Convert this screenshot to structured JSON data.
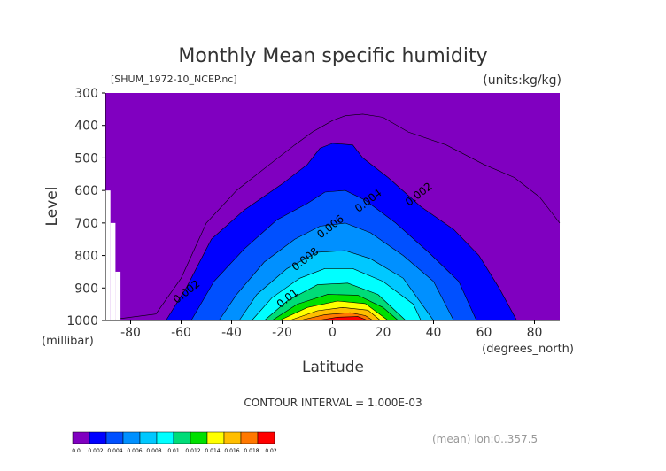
{
  "chart_data": {
    "type": "contour",
    "title": "Monthly Mean specific humidity",
    "source_label": "[SHUM_1972-10_NCEP.nc]",
    "units_label": "(units:kg/kg)",
    "xlabel": "Latitude",
    "ylabel": "Level",
    "x_unit_label": "(degrees_north)",
    "y_unit_label": "(millibar)",
    "xlim": [
      -90,
      90
    ],
    "ylim": [
      1000,
      300
    ],
    "x_ticks": [
      -80,
      -60,
      -40,
      -20,
      0,
      20,
      40,
      60,
      80
    ],
    "y_ticks": [
      300,
      400,
      500,
      600,
      700,
      800,
      900,
      1000
    ],
    "contour_interval_label": "CONTOUR INTERVAL = 1.000E-03",
    "footer_label": "(mean) lon:0..357.5",
    "contour_labels": [
      {
        "text": "0.002",
        "lat": -57,
        "level": 920
      },
      {
        "text": "0.002",
        "lat": 35,
        "level": 620
      },
      {
        "text": "0.004",
        "lat": 15,
        "level": 640
      },
      {
        "text": "0.006",
        "lat": 0,
        "level": 720
      },
      {
        "text": "0.008",
        "lat": -10,
        "level": 820
      },
      {
        "text": "0.01",
        "lat": -17,
        "level": 940
      }
    ],
    "fill_levels": [
      {
        "threshold": 0.002,
        "color": "#0000ff",
        "profile": [
          [
            -66,
            1000
          ],
          [
            -58,
            900
          ],
          [
            -48,
            750
          ],
          [
            -35,
            660
          ],
          [
            -20,
            580
          ],
          [
            -10,
            520
          ],
          [
            -5,
            470
          ],
          [
            0,
            455
          ],
          [
            8,
            460
          ],
          [
            12,
            500
          ],
          [
            22,
            560
          ],
          [
            35,
            650
          ],
          [
            48,
            720
          ],
          [
            58,
            800
          ],
          [
            66,
            900
          ],
          [
            73,
            1000
          ]
        ]
      },
      {
        "threshold": 0.003,
        "color": "#0050ff",
        "profile": [
          [
            -56,
            1000
          ],
          [
            -47,
            880
          ],
          [
            -35,
            780
          ],
          [
            -22,
            690
          ],
          [
            -10,
            640
          ],
          [
            -3,
            605
          ],
          [
            5,
            600
          ],
          [
            13,
            630
          ],
          [
            25,
            700
          ],
          [
            38,
            790
          ],
          [
            50,
            880
          ],
          [
            57,
            1000
          ]
        ]
      },
      {
        "threshold": 0.004,
        "color": "#0090ff",
        "profile": [
          [
            -45,
            1000
          ],
          [
            -38,
            920
          ],
          [
            -27,
            820
          ],
          [
            -15,
            750
          ],
          [
            -5,
            710
          ],
          [
            5,
            700
          ],
          [
            15,
            730
          ],
          [
            28,
            800
          ],
          [
            40,
            880
          ],
          [
            48,
            1000
          ]
        ]
      },
      {
        "threshold": 0.005,
        "color": "#00c8ff",
        "profile": [
          [
            -37,
            1000
          ],
          [
            -30,
            920
          ],
          [
            -18,
            840
          ],
          [
            -6,
            790
          ],
          [
            5,
            785
          ],
          [
            15,
            810
          ],
          [
            28,
            870
          ],
          [
            40,
            1000
          ]
        ]
      },
      {
        "threshold": 0.006,
        "color": "#00ffff",
        "profile": [
          [
            -32,
            1000
          ],
          [
            -24,
            930
          ],
          [
            -13,
            870
          ],
          [
            -3,
            840
          ],
          [
            8,
            840
          ],
          [
            20,
            880
          ],
          [
            32,
            950
          ],
          [
            35,
            1000
          ]
        ]
      },
      {
        "threshold": 0.008,
        "color": "#00dc78",
        "profile": [
          [
            -27,
            1000
          ],
          [
            -18,
            940
          ],
          [
            -6,
            890
          ],
          [
            6,
            885
          ],
          [
            18,
            920
          ],
          [
            29,
            1000
          ]
        ]
      },
      {
        "threshold": 0.01,
        "color": "#00e000",
        "profile": [
          [
            -24,
            1000
          ],
          [
            -14,
            950
          ],
          [
            -2,
            920
          ],
          [
            10,
            922
          ],
          [
            20,
            960
          ],
          [
            26,
            1000
          ]
        ]
      },
      {
        "threshold": 0.012,
        "color": "#ffff00",
        "profile": [
          [
            -21,
            1000
          ],
          [
            -10,
            960
          ],
          [
            2,
            940
          ],
          [
            13,
            948
          ],
          [
            22,
            1000
          ]
        ]
      },
      {
        "threshold": 0.014,
        "color": "#ffbe00",
        "profile": [
          [
            -17,
            1000
          ],
          [
            -6,
            970
          ],
          [
            4,
            960
          ],
          [
            14,
            968
          ],
          [
            19,
            1000
          ]
        ]
      },
      {
        "threshold": 0.016,
        "color": "#ff7800",
        "profile": [
          [
            -13,
            1000
          ],
          [
            -3,
            982
          ],
          [
            7,
            976
          ],
          [
            13,
            985
          ],
          [
            16,
            1000
          ]
        ]
      },
      {
        "threshold": 0.018,
        "color": "#ff0000",
        "profile": [
          [
            -6,
            1000
          ],
          [
            2,
            990
          ],
          [
            10,
            988
          ],
          [
            14,
            1000
          ]
        ]
      }
    ],
    "outer_contour": [
      [
        -90,
        1000
      ],
      [
        -70,
        980
      ],
      [
        -60,
        870
      ],
      [
        -50,
        700
      ],
      [
        -38,
        600
      ],
      [
        -25,
        520
      ],
      [
        -15,
        460
      ],
      [
        -8,
        420
      ],
      [
        0,
        385
      ],
      [
        5,
        370
      ],
      [
        12,
        365
      ],
      [
        20,
        375
      ],
      [
        30,
        420
      ],
      [
        45,
        460
      ],
      [
        60,
        520
      ],
      [
        72,
        560
      ],
      [
        82,
        620
      ],
      [
        88,
        680
      ],
      [
        90,
        700
      ]
    ],
    "missing_regions": [
      {
        "lat_from": -90,
        "lat_to": -88,
        "level_from": 600,
        "level_to": 1000
      },
      {
        "lat_from": -88,
        "lat_to": -86,
        "level_from": 700,
        "level_to": 1000
      },
      {
        "lat_from": -86,
        "lat_to": -84,
        "level_from": 850,
        "level_to": 1000
      }
    ],
    "colorbar": {
      "ticks": [
        "0.0",
        "0.002",
        "0.004",
        "0.006",
        "0.008",
        "0.01",
        "0.012",
        "0.014",
        "0.016",
        "0.018",
        "0.02"
      ],
      "colors": [
        "#8000c0",
        "#0000ff",
        "#0050ff",
        "#0090ff",
        "#00c8ff",
        "#00ffff",
        "#00dc78",
        "#00e000",
        "#ffff00",
        "#ffbe00",
        "#ff7800",
        "#ff0000"
      ]
    },
    "background_color": "#8000c0"
  }
}
